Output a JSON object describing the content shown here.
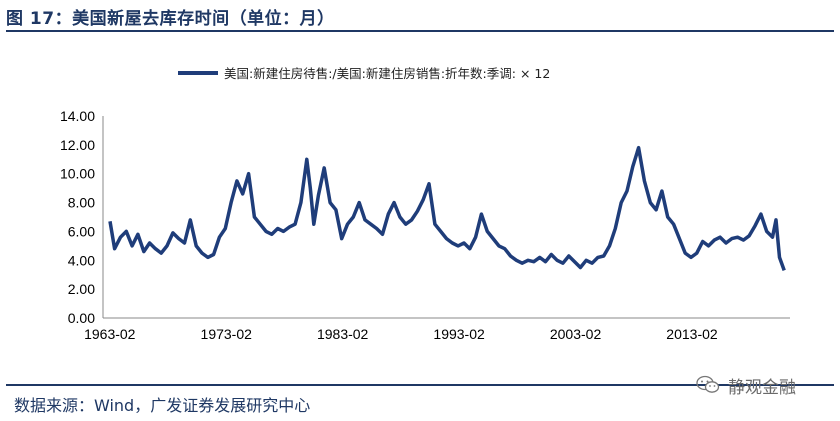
{
  "figure": {
    "title": "图 17：美国新屋去库存时间（单位：月）",
    "source": "数据来源：Wind，广发证券发展研究中心",
    "watermark": "静观金融"
  },
  "chart_data": {
    "type": "line",
    "title": "",
    "xlabel": "",
    "ylabel": "",
    "ylim": [
      0,
      14
    ],
    "yticks": [
      "0.00",
      "2.00",
      "4.00",
      "6.00",
      "8.00",
      "10.00",
      "12.00",
      "14.00"
    ],
    "xticks": [
      "1963-02",
      "1973-02",
      "1983-02",
      "1993-02",
      "2003-02",
      "2013-02"
    ],
    "grid": false,
    "legend_position": "top",
    "line_color": "#1f3d7a",
    "series": [
      {
        "name": "美国:新建住房待售:/美国:新建住房销售:折年数:季调: × 12",
        "x": [
          1963.1,
          1963.5,
          1964.0,
          1964.5,
          1965.0,
          1965.5,
          1966.0,
          1966.5,
          1967.0,
          1967.5,
          1968.0,
          1968.5,
          1969.0,
          1969.5,
          1970.0,
          1970.5,
          1971.0,
          1971.5,
          1972.0,
          1972.5,
          1973.0,
          1973.5,
          1974.0,
          1974.5,
          1975.0,
          1975.5,
          1976.0,
          1976.5,
          1977.0,
          1977.5,
          1978.0,
          1978.5,
          1979.0,
          1979.5,
          1980.0,
          1980.3,
          1980.6,
          1981.0,
          1981.5,
          1982.0,
          1982.5,
          1983.0,
          1983.5,
          1984.0,
          1984.5,
          1985.0,
          1985.5,
          1986.0,
          1986.5,
          1987.0,
          1987.5,
          1988.0,
          1988.5,
          1989.0,
          1989.5,
          1990.0,
          1990.5,
          1991.0,
          1991.5,
          1992.0,
          1992.5,
          1993.0,
          1993.5,
          1994.0,
          1994.5,
          1995.0,
          1995.5,
          1996.0,
          1996.5,
          1997.0,
          1997.5,
          1998.0,
          1998.5,
          1999.0,
          1999.5,
          2000.0,
          2000.5,
          2001.0,
          2001.5,
          2002.0,
          2002.5,
          2003.0,
          2003.5,
          2004.0,
          2004.5,
          2005.0,
          2005.5,
          2006.0,
          2006.5,
          2007.0,
          2007.5,
          2008.0,
          2008.5,
          2009.0,
          2009.5,
          2010.0,
          2010.5,
          2011.0,
          2011.5,
          2012.0,
          2012.5,
          2013.0,
          2013.5,
          2014.0,
          2014.5,
          2015.0,
          2015.5,
          2016.0,
          2016.5,
          2017.0,
          2017.5,
          2018.0,
          2018.5,
          2019.0,
          2019.5,
          2020.0,
          2020.3,
          2020.6,
          2021.0
        ],
        "values": [
          6.7,
          4.8,
          5.6,
          6.0,
          5.0,
          5.8,
          4.6,
          5.2,
          4.8,
          4.5,
          5.0,
          5.9,
          5.5,
          5.2,
          6.8,
          5.0,
          4.5,
          4.2,
          4.4,
          5.6,
          6.2,
          8.0,
          9.5,
          8.6,
          10.0,
          7.0,
          6.5,
          6.0,
          5.8,
          6.2,
          6.0,
          6.3,
          6.5,
          8.0,
          11.0,
          9.0,
          6.5,
          8.5,
          10.4,
          8.0,
          7.5,
          5.5,
          6.5,
          7.0,
          8.0,
          6.8,
          6.5,
          6.2,
          5.8,
          7.2,
          8.0,
          7.0,
          6.5,
          6.8,
          7.4,
          8.2,
          9.3,
          6.5,
          6.0,
          5.5,
          5.2,
          5.0,
          5.2,
          4.8,
          5.6,
          7.2,
          6.0,
          5.5,
          5.0,
          4.8,
          4.3,
          4.0,
          3.8,
          4.0,
          3.9,
          4.2,
          3.9,
          4.4,
          4.0,
          3.8,
          4.3,
          3.9,
          3.5,
          4.0,
          3.8,
          4.2,
          4.3,
          5.0,
          6.2,
          8.0,
          8.8,
          10.5,
          11.8,
          9.5,
          8.0,
          7.5,
          8.8,
          7.0,
          6.5,
          5.5,
          4.5,
          4.2,
          4.5,
          5.3,
          5.0,
          5.4,
          5.6,
          5.2,
          5.5,
          5.6,
          5.4,
          5.7,
          6.4,
          7.2,
          6.0,
          5.6,
          6.8,
          4.2,
          3.3
        ]
      }
    ]
  }
}
